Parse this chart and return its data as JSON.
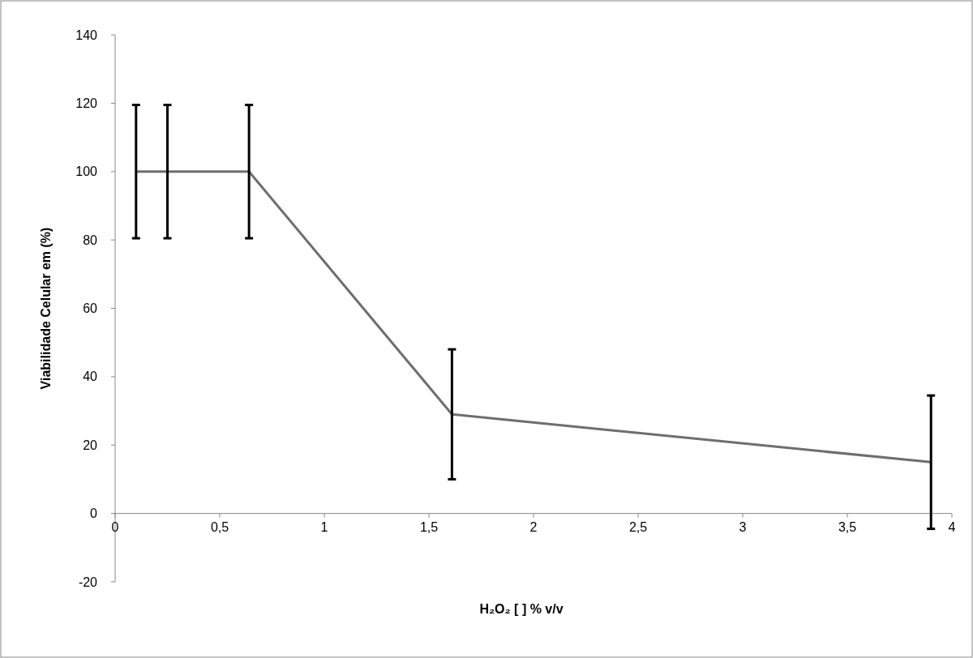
{
  "chart_data": {
    "type": "line",
    "xlabel": "H₂O₂ [ ] % v/v",
    "ylabel": "Viabilidade Celular em (%)",
    "x": [
      0.1,
      0.25,
      0.64,
      1.61,
      3.9
    ],
    "series": [
      {
        "color": "#6e6e6e",
        "values": [
          100,
          100,
          100,
          29,
          15
        ],
        "errors": [
          19.5,
          19.5,
          19.5,
          19,
          19.5
        ]
      }
    ],
    "xlim": [
      0,
      4
    ],
    "xticks": [
      0,
      {
        "value": 0.5,
        "label": "0,5"
      },
      1,
      {
        "value": 1.5,
        "label": "1,5"
      },
      2,
      {
        "value": 2.5,
        "label": "2,5"
      },
      3,
      {
        "value": 3.5,
        "label": "3,5"
      },
      4
    ],
    "ylim": [
      -20,
      140
    ],
    "yticks": [
      -20,
      0,
      20,
      40,
      60,
      80,
      100,
      120,
      140
    ],
    "grid": false,
    "marker": "none",
    "line_style": "solid"
  }
}
